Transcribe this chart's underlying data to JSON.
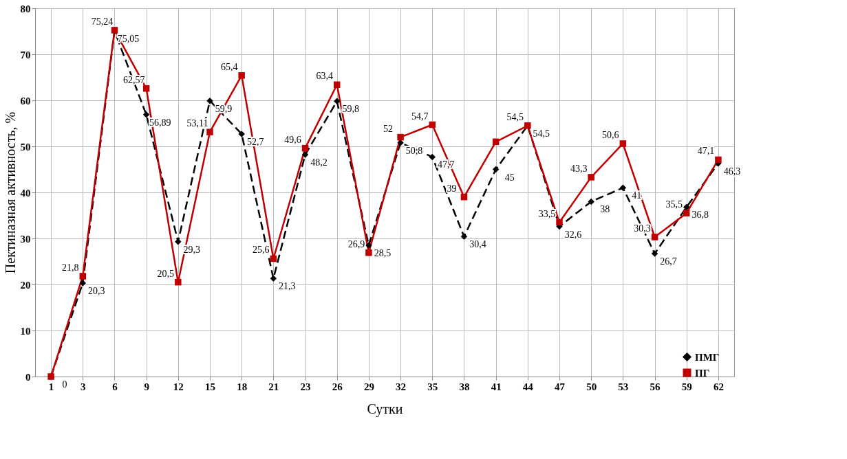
{
  "chart_data": {
    "type": "line",
    "xlabel": "Сутки",
    "ylabel": "Пектиназная активность, %",
    "categories": [
      "1",
      "3",
      "6",
      "9",
      "12",
      "15",
      "18",
      "21",
      "23",
      "26",
      "29",
      "32",
      "35",
      "38",
      "41",
      "44",
      "47",
      "50",
      "53",
      "56",
      "59",
      "62"
    ],
    "ylim": [
      0,
      80
    ],
    "yticks": [
      0,
      10,
      20,
      30,
      40,
      50,
      60,
      70,
      80
    ],
    "grid": true,
    "legend": "bottom right",
    "series": [
      {
        "name": "ПМГ",
        "color": "#000000",
        "line_style": "dashed",
        "marker": "diamond",
        "values": [
          0,
          20.3,
          75.05,
          56.89,
          29.3,
          59.9,
          52.7,
          21.3,
          48.2,
          59.8,
          28.5,
          50.8,
          47.7,
          30.4,
          45,
          54.5,
          32.6,
          38,
          41,
          26.7,
          36.8,
          46.3
        ],
        "value_labels": [
          "0",
          "20,3",
          "75,05",
          "56,89",
          "29,3",
          "59,9",
          "52,7",
          "21,3",
          "48,2",
          "59,8",
          "28,5",
          "50,8",
          "47,7",
          "30,4",
          "45",
          "54,5",
          "32,6",
          "38",
          "41",
          "26,7",
          "36,8",
          "46,3"
        ]
      },
      {
        "name": "ПГ",
        "color": "#c00000",
        "line_style": "solid",
        "marker": "square",
        "values": [
          0,
          21.8,
          75.24,
          62.57,
          20.5,
          53.11,
          65.4,
          25.6,
          49.6,
          63.4,
          26.9,
          52,
          54.7,
          39,
          51,
          54.5,
          33.5,
          43.3,
          50.6,
          30.3,
          35.5,
          47.1
        ],
        "value_labels": [
          null,
          "21,8",
          "75,24",
          "62,57",
          "20,5",
          "53,11",
          "65,4",
          "25,6",
          "49,6",
          "63,4",
          "26,9",
          "52",
          "54,7",
          "39",
          null,
          "54,5",
          "33,5",
          "43,3",
          "50,6",
          "30,3",
          "35,5",
          "47,1"
        ]
      }
    ]
  }
}
